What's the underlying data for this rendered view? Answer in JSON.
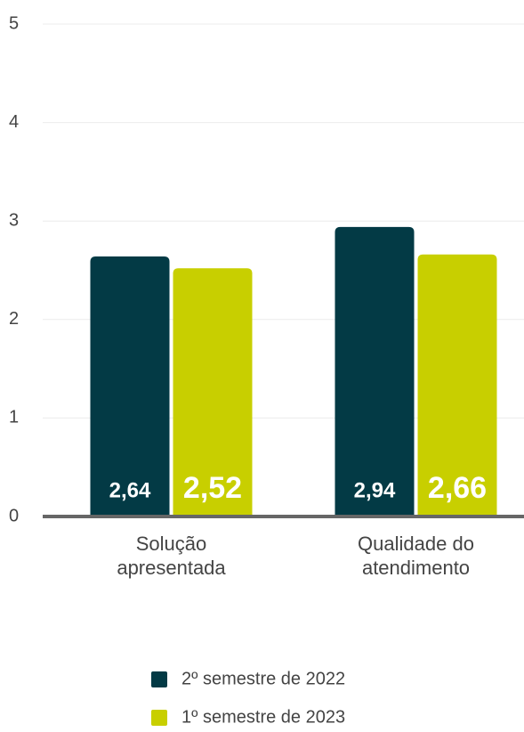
{
  "chart_data": {
    "type": "bar",
    "categories": [
      "Solução apresentada",
      "Qualidade do atendimento"
    ],
    "series": [
      {
        "name": "2º semestre de 2022",
        "color": "#033a45",
        "values": [
          2.64,
          2.94
        ],
        "value_labels": [
          "2,64",
          "2,94"
        ]
      },
      {
        "name": "1º semestre de 2023",
        "color": "#c8cf00",
        "values": [
          2.52,
          2.66
        ],
        "value_labels": [
          "2,52",
          "2,66"
        ]
      }
    ],
    "ylim": [
      0,
      5
    ],
    "yticks": [
      0,
      1,
      2,
      3,
      4,
      5
    ],
    "grid": true,
    "legend": "bottom"
  }
}
